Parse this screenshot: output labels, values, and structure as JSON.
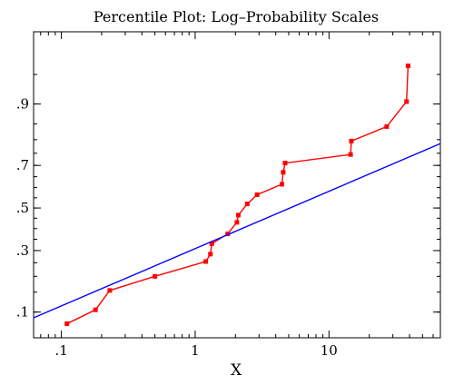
{
  "chart_data": {
    "type": "line",
    "title": "Percentile Plot: Log–Probability Scales",
    "xlabel": "X",
    "ylabel": "",
    "x_scale": "log",
    "y_scale": "probability",
    "xlim": [
      0.062,
      68
    ],
    "ylim": [
      0.055,
      0.985
    ],
    "grid": false,
    "x_ticks": [
      {
        "value": 0.1,
        "label": ".1"
      },
      {
        "value": 1,
        "label": "1"
      },
      {
        "value": 10,
        "label": "10"
      }
    ],
    "y_ticks": [
      {
        "value": 0.1,
        "label": ".1"
      },
      {
        "value": 0.3,
        "label": ".3"
      },
      {
        "value": 0.5,
        "label": ".5"
      },
      {
        "value": 0.7,
        "label": ".7"
      },
      {
        "value": 0.9,
        "label": ".9"
      }
    ],
    "series": [
      {
        "color": "#ff0000",
        "marker": "square",
        "points": [
          [
            0.11,
            0.077
          ],
          [
            0.18,
            0.105
          ],
          [
            0.23,
            0.155
          ],
          [
            0.5,
            0.2
          ],
          [
            1.2,
            0.255
          ],
          [
            1.3,
            0.285
          ],
          [
            1.33,
            0.33
          ],
          [
            1.75,
            0.375
          ],
          [
            2.05,
            0.43
          ],
          [
            2.1,
            0.465
          ],
          [
            2.45,
            0.52
          ],
          [
            2.9,
            0.565
          ],
          [
            4.45,
            0.615
          ],
          [
            4.55,
            0.67
          ],
          [
            4.7,
            0.71
          ],
          [
            14.5,
            0.745
          ],
          [
            14.7,
            0.795
          ],
          [
            27,
            0.842
          ],
          [
            38,
            0.905
          ],
          [
            39,
            0.96
          ]
        ]
      },
      {
        "color": "#0000ff",
        "marker": "none",
        "fit_line": {
          "intercept": -0.5,
          "slope": 0.706
        }
      }
    ]
  }
}
